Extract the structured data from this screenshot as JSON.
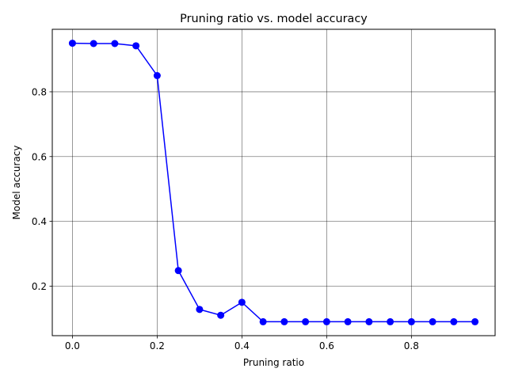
{
  "chart_data": {
    "type": "line",
    "title": "Pruning ratio vs. model accuracy",
    "xlabel": "Pruning ratio",
    "ylabel": "Model accuracy",
    "xlim": [
      -0.0475,
      0.9975
    ],
    "ylim": [
      0.047,
      0.993
    ],
    "xticks": [
      0.0,
      0.2,
      0.4,
      0.6,
      0.8
    ],
    "xtick_labels": [
      "0.0",
      "0.2",
      "0.4",
      "0.6",
      "0.8"
    ],
    "yticks": [
      0.2,
      0.4,
      0.6,
      0.8
    ],
    "ytick_labels": [
      "0.2",
      "0.4",
      "0.6",
      "0.8"
    ],
    "grid": true,
    "series": [
      {
        "color": "#0000ff",
        "marker": "circle",
        "x": [
          0.0,
          0.05,
          0.1,
          0.15,
          0.2,
          0.25,
          0.3,
          0.35,
          0.4,
          0.45,
          0.5,
          0.55,
          0.6,
          0.65,
          0.7,
          0.75,
          0.8,
          0.85,
          0.9,
          0.95
        ],
        "y": [
          0.95,
          0.949,
          0.949,
          0.942,
          0.85,
          0.248,
          0.128,
          0.11,
          0.15,
          0.09,
          0.09,
          0.09,
          0.09,
          0.09,
          0.09,
          0.09,
          0.09,
          0.09,
          0.09,
          0.09
        ]
      }
    ]
  }
}
